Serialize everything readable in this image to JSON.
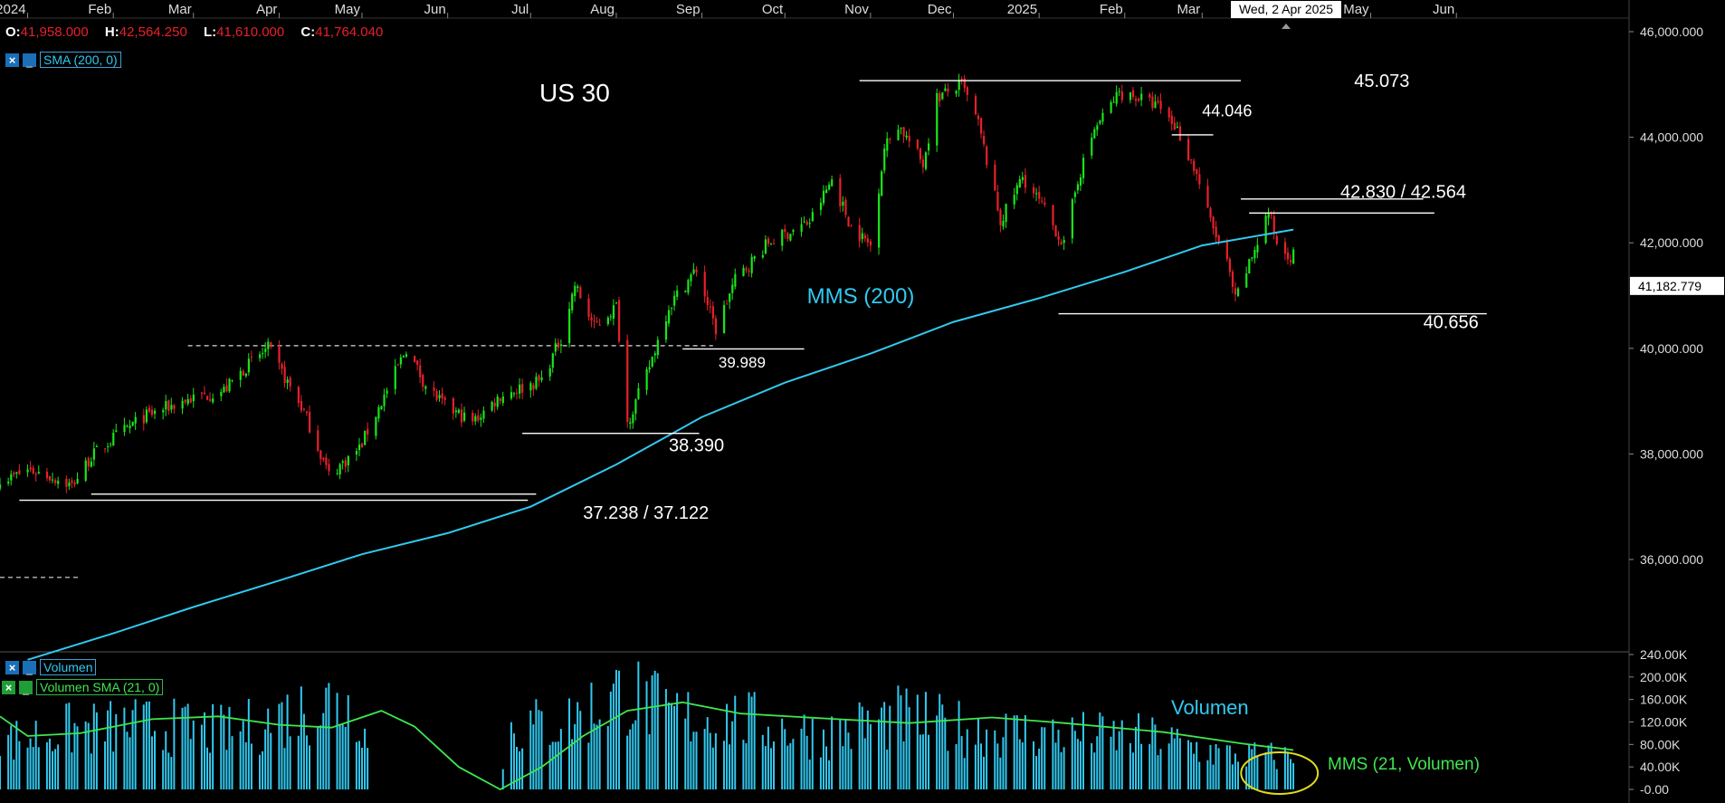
{
  "top_bar": {
    "ohlc": {
      "o_label": "O:",
      "o_value": "41,958.000",
      "h_label": "H:",
      "h_value": "42,564.250",
      "l_label": "L:",
      "l_value": "41,610.000",
      "c_label": "C:",
      "c_value": "41,764.040"
    },
    "crosshair_date": "Wed, 2 Apr 2025",
    "price_tag": "41,182.779"
  },
  "legends": {
    "price_sma": "SMA (200, 0)",
    "volume": "Volumen",
    "volume_sma": "Volumen SMA (21, 0)",
    "close_glyph": "×",
    "minimize_glyph": "_"
  },
  "colors": {
    "background": "#000000",
    "up_candle": "#19e619",
    "down_candle": "#e8202a",
    "sma_line": "#31c9f0",
    "volume_bars": "#31c9f0",
    "volume_sma": "#3ee64f",
    "levels": "#ffffff",
    "highlight_ellipse": "#e0dc1c",
    "price_tag_bg": "#ffffff"
  },
  "chart_data": [
    {
      "type": "candlestick",
      "title": "US 30",
      "x_axis_labels": [
        "2024",
        "Feb",
        "Mar",
        "Apr",
        "May",
        "Jun",
        "Jul",
        "Aug",
        "Sep",
        "Oct",
        "Nov",
        "Dec",
        "2025",
        "Feb",
        "Mar",
        "Apr",
        "May",
        "Jun"
      ],
      "y_tick_labels": [
        "46,000.000",
        "44,000.000",
        "42,000.000",
        "40,000.000",
        "38,000.000",
        "36,000.000"
      ],
      "ylim": [
        34000,
        46250
      ],
      "grid": false,
      "close_path": [
        [
          "2023-12-26",
          37550
        ],
        [
          "2024-01-01",
          37700
        ],
        [
          "2024-01-08",
          37600
        ],
        [
          "2024-01-17",
          37400
        ],
        [
          "2024-01-24",
          37950
        ],
        [
          "2024-02-01",
          38300
        ],
        [
          "2024-02-12",
          38700
        ],
        [
          "2024-02-26",
          39000
        ],
        [
          "2024-03-12",
          39200
        ],
        [
          "2024-03-20",
          39650
        ],
        [
          "2024-03-28",
          40000
        ],
        [
          "2024-04-10",
          38800
        ],
        [
          "2024-04-19",
          37600
        ],
        [
          "2024-04-30",
          38100
        ],
        [
          "2024-05-10",
          39200
        ],
        [
          "2024-05-17",
          40000
        ],
        [
          "2024-05-24",
          39300
        ],
        [
          "2024-05-31",
          38900
        ],
        [
          "2024-06-10",
          38600
        ],
        [
          "2024-06-20",
          39100
        ],
        [
          "2024-07-05",
          39400
        ],
        [
          "2024-07-12",
          40200
        ],
        [
          "2024-07-17",
          41200
        ],
        [
          "2024-07-24",
          40400
        ],
        [
          "2024-08-01",
          40800
        ],
        [
          "2024-08-05",
          38600
        ],
        [
          "2024-08-12",
          39500
        ],
        [
          "2024-08-20",
          40800
        ],
        [
          "2024-08-30",
          41500
        ],
        [
          "2024-09-06",
          40350
        ],
        [
          "2024-09-13",
          41300
        ],
        [
          "2024-09-25",
          42000
        ],
        [
          "2024-10-10",
          42400
        ],
        [
          "2024-10-18",
          43200
        ],
        [
          "2024-10-25",
          42300
        ],
        [
          "2024-11-01",
          41950
        ],
        [
          "2024-11-06",
          43800
        ],
        [
          "2024-11-11",
          44250
        ],
        [
          "2024-11-20",
          43500
        ],
        [
          "2024-11-25",
          44750
        ],
        [
          "2024-12-04",
          45000
        ],
        [
          "2024-12-10",
          44250
        ],
        [
          "2024-12-18",
          42400
        ],
        [
          "2024-12-26",
          43250
        ],
        [
          "2025-01-02",
          42700
        ],
        [
          "2025-01-10",
          41950
        ],
        [
          "2025-01-15",
          43200
        ],
        [
          "2025-01-21",
          44150
        ],
        [
          "2025-01-30",
          44850
        ],
        [
          "2025-02-06",
          44750
        ],
        [
          "2025-02-14",
          44550
        ],
        [
          "2025-02-20",
          44150
        ],
        [
          "2025-02-27",
          43300
        ],
        [
          "2025-03-04",
          42400
        ],
        [
          "2025-03-10",
          41600
        ],
        [
          "2025-03-13",
          40900
        ],
        [
          "2025-03-18",
          41600
        ],
        [
          "2025-03-25",
          42600
        ],
        [
          "2025-03-28",
          42000
        ],
        [
          "2025-04-02",
          41764
        ]
      ],
      "sma_200": {
        "name": "MMS (200)",
        "points": [
          [
            "2024-01-01",
            34100
          ],
          [
            "2024-02-01",
            34600
          ],
          [
            "2024-03-01",
            35100
          ],
          [
            "2024-04-01",
            35600
          ],
          [
            "2024-05-01",
            36100
          ],
          [
            "2024-06-01",
            36500
          ],
          [
            "2024-07-01",
            37000
          ],
          [
            "2024-08-01",
            37800
          ],
          [
            "2024-09-01",
            38700
          ],
          [
            "2024-10-01",
            39350
          ],
          [
            "2024-11-01",
            39900
          ],
          [
            "2024-12-01",
            40500
          ],
          [
            "2025-01-01",
            40950
          ],
          [
            "2025-02-01",
            41450
          ],
          [
            "2025-03-01",
            41950
          ],
          [
            "2025-04-03",
            42250
          ]
        ]
      },
      "levels": [
        {
          "label": "45.073",
          "value": 45073,
          "from": "2024-10-28",
          "to": "2025-03-15"
        },
        {
          "label": "44.046",
          "value": 44046,
          "from": "2025-02-18",
          "to": "2025-03-05"
        },
        {
          "label": "42.830 / 42.564",
          "value": 42830,
          "value2": 42564,
          "from": "2025-03-15",
          "to": "2025-05-20"
        },
        {
          "label": "40.656",
          "value": 40656,
          "from": "2025-01-08",
          "to": "2025-06-12"
        },
        {
          "label": "39.989",
          "value": 39989,
          "from": "2024-08-25",
          "to": "2024-10-08"
        },
        {
          "label": "38.390",
          "value": 38390,
          "from": "2024-06-28",
          "to": "2024-08-31"
        },
        {
          "label": "37.238 / 37.122",
          "value": 37238,
          "value2": 37122,
          "from": "2024-01-24",
          "to": "2024-07-03"
        }
      ],
      "dashed_level": {
        "value": 40050,
        "from": "2024-02-28",
        "to": "2024-09-05"
      },
      "dashed_level_2": {
        "value": 35660,
        "from": "2023-12-22",
        "to": "2024-01-20"
      }
    },
    {
      "type": "bar",
      "title": "Volumen",
      "y_tick_labels": [
        "240.00K",
        "200.00K",
        "160.00K",
        "120.00K",
        "80.00K",
        "40.00K",
        "-0.00"
      ],
      "ylim": [
        0,
        240000
      ],
      "volume_envelope": [
        [
          "2023-12-22",
          95000
        ],
        [
          "2024-01-15",
          120000
        ],
        [
          "2024-02-15",
          130000
        ],
        [
          "2024-03-15",
          115000
        ],
        [
          "2024-04-20",
          180000
        ],
        [
          "2024-05-01",
          155000
        ],
        [
          "2024-05-05",
          0
        ],
        [
          "2024-06-20",
          0
        ],
        [
          "2024-06-22",
          120000
        ],
        [
          "2024-07-15",
          140000
        ],
        [
          "2024-08-05",
          200000
        ],
        [
          "2024-08-20",
          150000
        ],
        [
          "2024-09-15",
          140000
        ],
        [
          "2024-10-15",
          110000
        ],
        [
          "2024-11-10",
          145000
        ],
        [
          "2024-12-10",
          120000
        ],
        [
          "2025-01-10",
          110000
        ],
        [
          "2025-02-10",
          105000
        ],
        [
          "2025-03-10",
          70000
        ],
        [
          "2025-04-03",
          65000
        ]
      ],
      "volume_sma": {
        "name": "MMS (21, Volumen)",
        "points": [
          [
            "2023-12-22",
            130000
          ],
          [
            "2024-01-01",
            95000
          ],
          [
            "2024-01-20",
            100000
          ],
          [
            "2024-02-15",
            125000
          ],
          [
            "2024-03-10",
            130000
          ],
          [
            "2024-04-01",
            115000
          ],
          [
            "2024-04-20",
            110000
          ],
          [
            "2024-05-08",
            140000
          ],
          [
            "2024-05-20",
            112000
          ],
          [
            "2024-06-05",
            40000
          ],
          [
            "2024-06-20",
            0
          ],
          [
            "2024-07-05",
            40000
          ],
          [
            "2024-07-20",
            95000
          ],
          [
            "2024-08-05",
            140000
          ],
          [
            "2024-08-25",
            155000
          ],
          [
            "2024-09-15",
            135000
          ],
          [
            "2024-10-20",
            125000
          ],
          [
            "2024-11-15",
            118000
          ],
          [
            "2024-12-15",
            128000
          ],
          [
            "2025-01-10",
            118000
          ],
          [
            "2025-02-15",
            102000
          ],
          [
            "2025-03-15",
            82000
          ],
          [
            "2025-04-03",
            70000
          ]
        ]
      },
      "highlight_region": {
        "from": "2025-03-20",
        "to": "2025-04-05"
      }
    }
  ]
}
